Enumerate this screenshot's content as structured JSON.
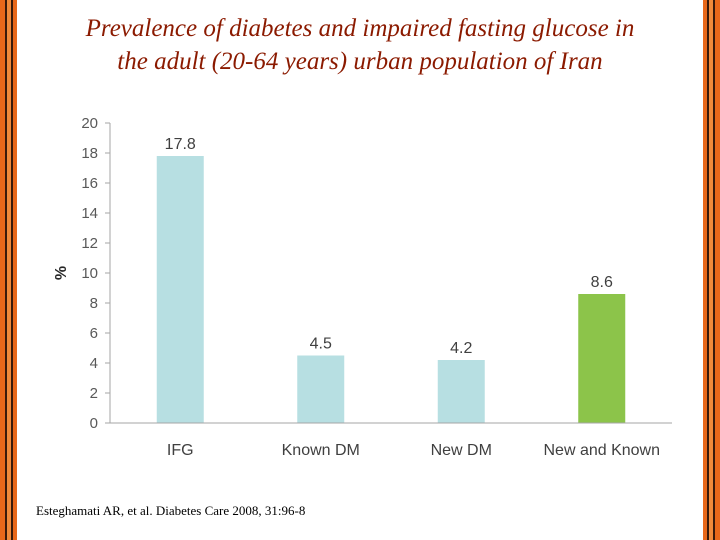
{
  "title": {
    "line1": "Prevalence of diabetes and impaired fasting glucose in",
    "line2": "the adult (20-64 years) urban population of Iran"
  },
  "citation": "Esteghamati AR, et al. Diabetes Care 2008, 31:96-8",
  "colors": {
    "title": "#8b1a00",
    "frame_orange": "#e8681a",
    "frame_dark": "#3a1a0a",
    "bar_default": "#b7dfe2",
    "bar_highlight": "#8cc44a"
  },
  "chart_data": {
    "type": "bar",
    "categories": [
      "IFG",
      "Known DM",
      "New DM",
      "New and Known"
    ],
    "values": [
      17.8,
      4.5,
      4.2,
      8.6
    ],
    "value_labels": [
      "17.8",
      "4.5",
      "4.2",
      "8.6"
    ],
    "bar_colors": [
      "#b7dfe2",
      "#b7dfe2",
      "#b7dfe2",
      "#8cc44a"
    ],
    "ylabel": "%",
    "ylim": [
      0,
      20
    ],
    "yticks": [
      "0",
      "2",
      "4",
      "6",
      "8",
      "10",
      "12",
      "14",
      "16",
      "18",
      "20"
    ],
    "grid": false,
    "legend": "none"
  }
}
